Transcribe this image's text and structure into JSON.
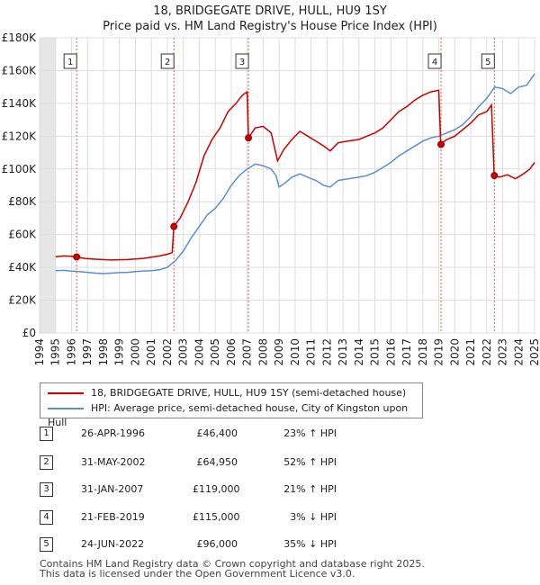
{
  "title_line1": "18, BRIDGEGATE DRIVE, HULL, HU9 1SY",
  "title_line2": "Price paid vs. HM Land Registry's House Price Index (HPI)",
  "chart_data": {
    "type": "line",
    "x_range": [
      1994,
      2025
    ],
    "ylim": [
      0,
      180000
    ],
    "y_ticks": [
      {
        "value": 0,
        "label": "£0"
      },
      {
        "value": 20000,
        "label": "£20K"
      },
      {
        "value": 40000,
        "label": "£40K"
      },
      {
        "value": 60000,
        "label": "£60K"
      },
      {
        "value": 80000,
        "label": "£80K"
      },
      {
        "value": 100000,
        "label": "£100K"
      },
      {
        "value": 120000,
        "label": "£120K"
      },
      {
        "value": 140000,
        "label": "£140K"
      },
      {
        "value": 160000,
        "label": "£160K"
      },
      {
        "value": 180000,
        "label": "£180K"
      }
    ],
    "x_ticks": [
      "1994",
      "1995",
      "1996",
      "1997",
      "1998",
      "1999",
      "2000",
      "2001",
      "2002",
      "2003",
      "2004",
      "2005",
      "2006",
      "2007",
      "2008",
      "2009",
      "2010",
      "2011",
      "2012",
      "2013",
      "2014",
      "2015",
      "2016",
      "2017",
      "2018",
      "2019",
      "2020",
      "2021",
      "2022",
      "2023",
      "2024",
      "2025"
    ],
    "grid": true,
    "series": [
      {
        "name": "18, BRIDGEGATE DRIVE, HULL, HU9 1SY (semi-detached house)",
        "color": "#cc0000",
        "points": [
          [
            1995.0,
            46500
          ],
          [
            1995.5,
            47000
          ],
          [
            1996.0,
            46800
          ],
          [
            1996.32,
            46400
          ],
          [
            1996.8,
            45500
          ],
          [
            1997.5,
            45000
          ],
          [
            1998.5,
            44500
          ],
          [
            1999.5,
            44800
          ],
          [
            2000.5,
            45500
          ],
          [
            2001.5,
            47000
          ],
          [
            2002.0,
            48000
          ],
          [
            2002.3,
            49000
          ],
          [
            2002.41,
            64950
          ],
          [
            2002.8,
            70000
          ],
          [
            2003.3,
            80000
          ],
          [
            2003.8,
            92000
          ],
          [
            2004.3,
            108000
          ],
          [
            2004.8,
            118000
          ],
          [
            2005.3,
            125000
          ],
          [
            2005.8,
            135000
          ],
          [
            2006.3,
            140000
          ],
          [
            2006.7,
            145000
          ],
          [
            2007.0,
            147000
          ],
          [
            2007.08,
            119000
          ],
          [
            2007.5,
            125000
          ],
          [
            2008.0,
            126000
          ],
          [
            2008.5,
            122000
          ],
          [
            2008.9,
            105000
          ],
          [
            2009.3,
            112000
          ],
          [
            2009.8,
            118000
          ],
          [
            2010.3,
            123000
          ],
          [
            2010.8,
            120000
          ],
          [
            2011.3,
            117000
          ],
          [
            2011.8,
            114000
          ],
          [
            2012.2,
            111000
          ],
          [
            2012.7,
            116000
          ],
          [
            2013.3,
            117000
          ],
          [
            2014.0,
            118000
          ],
          [
            2014.5,
            120000
          ],
          [
            2015.0,
            122000
          ],
          [
            2015.5,
            125000
          ],
          [
            2016.0,
            130000
          ],
          [
            2016.5,
            135000
          ],
          [
            2017.0,
            138000
          ],
          [
            2017.5,
            142000
          ],
          [
            2018.0,
            145000
          ],
          [
            2018.5,
            147000
          ],
          [
            2019.0,
            148000
          ],
          [
            2019.12,
            115000
          ],
          [
            2019.5,
            118000
          ],
          [
            2020.0,
            120000
          ],
          [
            2020.5,
            124000
          ],
          [
            2021.0,
            128000
          ],
          [
            2021.5,
            133000
          ],
          [
            2022.0,
            135000
          ],
          [
            2022.3,
            139000
          ],
          [
            2022.47,
            96000
          ],
          [
            2022.8,
            95000
          ],
          [
            2023.3,
            96500
          ],
          [
            2023.8,
            94000
          ],
          [
            2024.3,
            97000
          ],
          [
            2024.7,
            100000
          ],
          [
            2025.0,
            104000
          ]
        ]
      },
      {
        "name": "HPI: Average price, semi-detached house, City of Kingston upon Hull",
        "color": "#5b8fd1",
        "points": [
          [
            1995.0,
            38000
          ],
          [
            1995.5,
            38200
          ],
          [
            1996.0,
            37700
          ],
          [
            1996.5,
            37500
          ],
          [
            1997.0,
            37000
          ],
          [
            1997.5,
            36500
          ],
          [
            1998.0,
            36200
          ],
          [
            1998.5,
            36500
          ],
          [
            1999.0,
            36800
          ],
          [
            1999.5,
            37000
          ],
          [
            2000.0,
            37500
          ],
          [
            2000.5,
            37800
          ],
          [
            2001.0,
            38000
          ],
          [
            2001.5,
            38500
          ],
          [
            2002.0,
            40000
          ],
          [
            2002.5,
            44000
          ],
          [
            2003.0,
            50000
          ],
          [
            2003.5,
            58000
          ],
          [
            2004.0,
            65000
          ],
          [
            2004.5,
            72000
          ],
          [
            2005.0,
            76000
          ],
          [
            2005.5,
            82000
          ],
          [
            2006.0,
            90000
          ],
          [
            2006.5,
            96000
          ],
          [
            2007.0,
            100000
          ],
          [
            2007.5,
            103000
          ],
          [
            2008.0,
            102000
          ],
          [
            2008.5,
            100000
          ],
          [
            2008.8,
            96000
          ],
          [
            2009.0,
            89000
          ],
          [
            2009.3,
            91000
          ],
          [
            2009.8,
            95000
          ],
          [
            2010.3,
            97000
          ],
          [
            2010.8,
            95000
          ],
          [
            2011.3,
            93000
          ],
          [
            2011.8,
            90000
          ],
          [
            2012.2,
            89000
          ],
          [
            2012.7,
            93000
          ],
          [
            2013.3,
            94000
          ],
          [
            2014.0,
            95000
          ],
          [
            2014.5,
            96000
          ],
          [
            2015.0,
            98000
          ],
          [
            2015.5,
            101000
          ],
          [
            2016.0,
            104000
          ],
          [
            2016.5,
            108000
          ],
          [
            2017.0,
            111000
          ],
          [
            2017.5,
            114000
          ],
          [
            2018.0,
            117000
          ],
          [
            2018.5,
            119000
          ],
          [
            2019.0,
            120000
          ],
          [
            2019.5,
            122000
          ],
          [
            2020.0,
            124000
          ],
          [
            2020.5,
            127000
          ],
          [
            2021.0,
            132000
          ],
          [
            2021.5,
            138000
          ],
          [
            2022.0,
            143000
          ],
          [
            2022.5,
            150000
          ],
          [
            2023.0,
            149000
          ],
          [
            2023.5,
            146000
          ],
          [
            2024.0,
            150000
          ],
          [
            2024.5,
            151000
          ],
          [
            2025.0,
            158000
          ]
        ]
      }
    ],
    "sales": [
      {
        "num": "1",
        "x": 1996.32,
        "value": 46400
      },
      {
        "num": "2",
        "x": 2002.41,
        "value": 64950
      },
      {
        "num": "3",
        "x": 2007.08,
        "value": 119000
      },
      {
        "num": "4",
        "x": 2019.14,
        "value": 115000
      },
      {
        "num": "5",
        "x": 2022.48,
        "value": 96000
      }
    ]
  },
  "legend": {
    "red_label": "18, BRIDGEGATE DRIVE, HULL, HU9 1SY (semi-detached house)",
    "blue_label": "HPI: Average price, semi-detached house, City of Kingston upon Hull",
    "red_color": "#cc0000",
    "blue_color": "#5b8fd1"
  },
  "transactions": [
    {
      "num": "1",
      "date": "26-APR-1996",
      "price": "£46,400",
      "hpi": "23% ↑ HPI"
    },
    {
      "num": "2",
      "date": "31-MAY-2002",
      "price": "£64,950",
      "hpi": "52% ↑ HPI"
    },
    {
      "num": "3",
      "date": "31-JAN-2007",
      "price": "£119,000",
      "hpi": "21% ↑ HPI"
    },
    {
      "num": "4",
      "date": "21-FEB-2019",
      "price": "£115,000",
      "hpi": "3% ↓ HPI"
    },
    {
      "num": "5",
      "date": "24-JUN-2022",
      "price": "£96,000",
      "hpi": "35% ↓ HPI"
    }
  ],
  "footer_line1": "Contains HM Land Registry data © Crown copyright and database right 2025.",
  "footer_line2": "This data is licensed under the Open Government Licence v3.0."
}
